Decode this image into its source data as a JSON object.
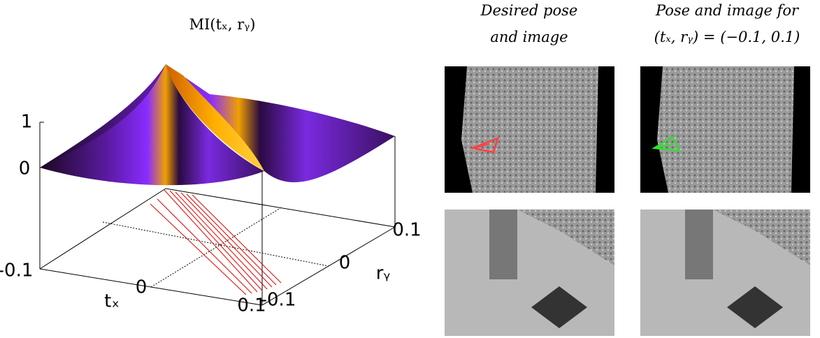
{
  "figure": {
    "plot": {
      "title": "MI(tₓ, rᵧ)",
      "z_ticks": [
        "1",
        "0"
      ],
      "tx_ticks": [
        "-0.1",
        "0",
        "0.1"
      ],
      "ry_ticks": [
        "-0.1",
        "0",
        "0.1"
      ],
      "tx_label": "tₓ",
      "ry_label": "rᵧ"
    },
    "columns": [
      {
        "header": [
          "Desired pose",
          "and image"
        ]
      },
      {
        "header": [
          "Pose and image for",
          "(tₓ, rᵧ) = (−0.1, 0.1)"
        ]
      }
    ]
  }
}
